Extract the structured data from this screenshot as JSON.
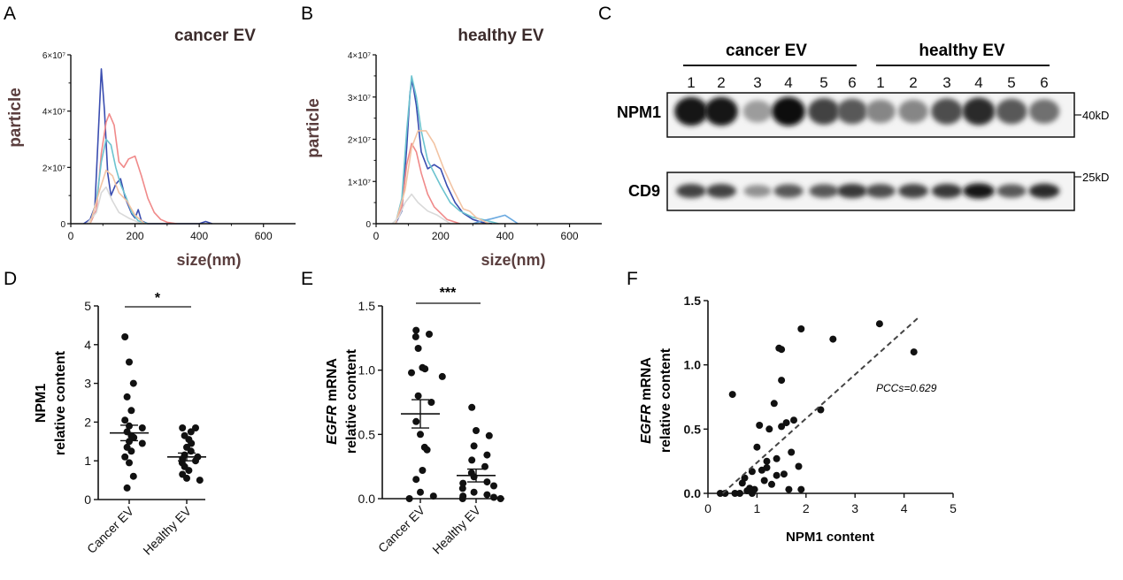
{
  "panel_labels": [
    "A",
    "B",
    "C",
    "D",
    "E",
    "F"
  ],
  "colors": {
    "blue": "#3a4db0",
    "salmon": "#f08a8a",
    "teal": "#6cc3cf",
    "light": "#d9d9d9",
    "peach": "#f2c4a4",
    "sky": "#6aa9e0",
    "axis_label": "#5a3e3e",
    "ink": "#111111"
  },
  "chart_data": [
    {
      "panel": "A",
      "type": "line",
      "title": "cancer EV",
      "xlabel": "size(nm)",
      "ylabel": "particle",
      "xlim": [
        0,
        700
      ],
      "ylim": [
        0,
        60000000
      ],
      "xticks": [
        "0",
        "200",
        "400",
        "600"
      ],
      "yticks": [
        "0",
        "2×10⁷",
        "4×10⁷",
        "6×10⁷"
      ],
      "series": [
        {
          "color": "blue",
          "points": [
            [
              40,
              0
            ],
            [
              60,
              1500000
            ],
            [
              75,
              6000000
            ],
            [
              85,
              30000000
            ],
            [
              95,
              55000000
            ],
            [
              105,
              40000000
            ],
            [
              115,
              18000000
            ],
            [
              125,
              10000000
            ],
            [
              140,
              14000000
            ],
            [
              155,
              16000000
            ],
            [
              170,
              9000000
            ],
            [
              190,
              3500000
            ],
            [
              200,
              2000000
            ],
            [
              210,
              5000000
            ],
            [
              220,
              1000000
            ],
            [
              240,
              0
            ],
            [
              400,
              0
            ],
            [
              420,
              800000
            ],
            [
              440,
              0
            ]
          ]
        },
        {
          "color": "salmon",
          "points": [
            [
              60,
              0
            ],
            [
              80,
              5000000
            ],
            [
              95,
              25000000
            ],
            [
              110,
              36000000
            ],
            [
              120,
              39000000
            ],
            [
              135,
              35000000
            ],
            [
              150,
              22000000
            ],
            [
              165,
              20000000
            ],
            [
              180,
              23000000
            ],
            [
              200,
              24000000
            ],
            [
              220,
              17000000
            ],
            [
              240,
              9000000
            ],
            [
              260,
              4000000
            ],
            [
              280,
              1500000
            ],
            [
              300,
              500000
            ],
            [
              330,
              0
            ]
          ]
        },
        {
          "color": "teal",
          "points": [
            [
              60,
              0
            ],
            [
              80,
              8000000
            ],
            [
              95,
              22000000
            ],
            [
              110,
              30000000
            ],
            [
              125,
              28000000
            ],
            [
              140,
              20000000
            ],
            [
              155,
              14000000
            ],
            [
              170,
              10000000
            ],
            [
              190,
              4000000
            ],
            [
              210,
              1000000
            ],
            [
              240,
              0
            ]
          ]
        },
        {
          "color": "light",
          "points": [
            [
              50,
              0
            ],
            [
              80,
              4000000
            ],
            [
              95,
              11000000
            ],
            [
              110,
              13000000
            ],
            [
              130,
              8000000
            ],
            [
              150,
              4000000
            ],
            [
              180,
              2000000
            ],
            [
              220,
              0
            ]
          ]
        },
        {
          "color": "peach",
          "points": [
            [
              60,
              0
            ],
            [
              90,
              12000000
            ],
            [
              110,
              19000000
            ],
            [
              130,
              17000000
            ],
            [
              150,
              11000000
            ],
            [
              175,
              8000000
            ],
            [
              200,
              3000000
            ],
            [
              230,
              0
            ]
          ]
        }
      ]
    },
    {
      "panel": "B",
      "type": "line",
      "title": "healthy EV",
      "xlabel": "size(nm)",
      "ylabel": "particle",
      "xlim": [
        0,
        700
      ],
      "ylim": [
        0,
        40000000
      ],
      "xticks": [
        "0",
        "200",
        "400",
        "600"
      ],
      "yticks": [
        "0",
        "1×10⁷",
        "2×10⁷",
        "3×10⁷",
        "4×10⁷"
      ],
      "series": [
        {
          "color": "blue",
          "points": [
            [
              60,
              0
            ],
            [
              80,
              3000000
            ],
            [
              95,
              18000000
            ],
            [
              105,
              31000000
            ],
            [
              112,
              34000000
            ],
            [
              125,
              28000000
            ],
            [
              140,
              17000000
            ],
            [
              160,
              13000000
            ],
            [
              180,
              14000000
            ],
            [
              200,
              13000000
            ],
            [
              220,
              9000000
            ],
            [
              245,
              5000000
            ],
            [
              270,
              2500000
            ],
            [
              300,
              1000000
            ],
            [
              330,
              300000
            ],
            [
              360,
              0
            ]
          ]
        },
        {
          "color": "salmon",
          "points": [
            [
              60,
              0
            ],
            [
              80,
              4000000
            ],
            [
              95,
              14000000
            ],
            [
              110,
              19000000
            ],
            [
              125,
              17000000
            ],
            [
              140,
              12000000
            ],
            [
              160,
              7000000
            ],
            [
              180,
              4000000
            ],
            [
              200,
              2500000
            ],
            [
              220,
              1000000
            ],
            [
              260,
              0
            ]
          ]
        },
        {
          "color": "teal",
          "points": [
            [
              60,
              0
            ],
            [
              80,
              6000000
            ],
            [
              95,
              22000000
            ],
            [
              110,
              35000000
            ],
            [
              125,
              30000000
            ],
            [
              140,
              22000000
            ],
            [
              160,
              15000000
            ],
            [
              180,
              12000000
            ],
            [
              200,
              9000000
            ],
            [
              230,
              5000000
            ],
            [
              260,
              3000000
            ],
            [
              300,
              1500000
            ],
            [
              340,
              800000
            ],
            [
              380,
              0
            ]
          ]
        },
        {
          "color": "sky",
          "points": [
            [
              300,
              0
            ],
            [
              330,
              700000
            ],
            [
              360,
              1200000
            ],
            [
              400,
              2000000
            ],
            [
              420,
              1000000
            ],
            [
              440,
              0
            ]
          ]
        },
        {
          "color": "peach",
          "points": [
            [
              60,
              0
            ],
            [
              90,
              8000000
            ],
            [
              110,
              18000000
            ],
            [
              130,
              22000000
            ],
            [
              155,
              22000000
            ],
            [
              180,
              19000000
            ],
            [
              210,
              13000000
            ],
            [
              240,
              8000000
            ],
            [
              270,
              3500000
            ],
            [
              290,
              3000000
            ],
            [
              310,
              1500000
            ],
            [
              350,
              0
            ]
          ]
        },
        {
          "color": "light",
          "points": [
            [
              50,
              0
            ],
            [
              70,
              1500000
            ],
            [
              90,
              5000000
            ],
            [
              110,
              7000000
            ],
            [
              130,
              5000000
            ],
            [
              160,
              3000000
            ],
            [
              190,
              2000000
            ],
            [
              230,
              0
            ]
          ]
        }
      ]
    },
    {
      "panel": "D",
      "type": "scatter",
      "ylabel_line1": "NPM1",
      "ylabel_line2": "relative content",
      "categories": [
        "Cancer EV",
        "Healthy EV"
      ],
      "ylim": [
        0,
        5
      ],
      "yticks": [
        "0",
        "1",
        "2",
        "3",
        "4",
        "5"
      ],
      "significance": "*",
      "series": [
        {
          "name": "Cancer EV",
          "mean": 1.72,
          "sem": 0.2,
          "values": [
            4.2,
            3.55,
            3.0,
            2.65,
            2.3,
            2.05,
            1.9,
            1.85,
            1.75,
            1.65,
            1.6,
            1.5,
            1.45,
            1.35,
            1.25,
            1.1,
            0.95,
            0.6,
            0.3
          ]
        },
        {
          "name": "Healthy EV",
          "mean": 1.1,
          "sem": 0.1,
          "values": [
            1.85,
            1.85,
            1.75,
            1.65,
            1.55,
            1.45,
            1.35,
            1.25,
            1.15,
            1.1,
            1.05,
            1.0,
            0.95,
            0.85,
            0.75,
            0.65,
            0.55,
            0.5
          ]
        }
      ]
    },
    {
      "panel": "E",
      "type": "scatter",
      "ylabel_italic": "EGFR",
      "ylabel_rest": " mRNA",
      "ylabel_line2": "relative content",
      "categories": [
        "Cancer EV",
        "Healthy EV"
      ],
      "ylim": [
        0,
        1.5
      ],
      "yticks": [
        "0.0",
        "0.5",
        "1.0",
        "1.5"
      ],
      "significance": "***",
      "series": [
        {
          "name": "Cancer EV",
          "mean": 0.66,
          "sem": 0.11,
          "values": [
            1.31,
            1.28,
            1.26,
            1.17,
            1.02,
            1.01,
            0.98,
            0.95,
            0.8,
            0.75,
            0.6,
            0.5,
            0.4,
            0.38,
            0.22,
            0.15,
            0.05,
            0.02,
            0.0
          ]
        },
        {
          "name": "Healthy EV",
          "mean": 0.18,
          "sem": 0.05,
          "values": [
            0.71,
            0.53,
            0.49,
            0.41,
            0.34,
            0.3,
            0.25,
            0.2,
            0.17,
            0.13,
            0.12,
            0.1,
            0.08,
            0.05,
            0.03,
            0.02,
            0.01,
            0.0,
            0.0
          ]
        }
      ]
    },
    {
      "panel": "F",
      "type": "scatter",
      "xlabel": "NPM1 content",
      "ylabel_italic": "EGFR",
      "ylabel_rest": " mRNA",
      "ylabel_line2": "relative content",
      "xlim": [
        0,
        5
      ],
      "ylim": [
        0,
        1.5
      ],
      "xticks": [
        "0",
        "1",
        "2",
        "3",
        "4",
        "5"
      ],
      "yticks": [
        "0.0",
        "0.5",
        "1.0",
        "1.5"
      ],
      "annotation": "PCCs=0.629",
      "fit": [
        [
          0.3,
          0.0
        ],
        [
          4.3,
          1.37
        ]
      ],
      "points": [
        [
          0.25,
          0.0
        ],
        [
          0.35,
          0.0
        ],
        [
          0.55,
          0.0
        ],
        [
          0.65,
          0.0
        ],
        [
          0.8,
          0.02
        ],
        [
          0.9,
          0.0
        ],
        [
          0.95,
          0.03
        ],
        [
          0.5,
          0.77
        ],
        [
          0.7,
          0.08
        ],
        [
          0.75,
          0.12
        ],
        [
          0.85,
          0.04
        ],
        [
          0.9,
          0.17
        ],
        [
          1.0,
          0.36
        ],
        [
          1.05,
          0.53
        ],
        [
          1.1,
          0.18
        ],
        [
          1.15,
          0.1
        ],
        [
          1.2,
          0.25
        ],
        [
          1.2,
          0.2
        ],
        [
          1.25,
          0.5
        ],
        [
          1.3,
          0.07
        ],
        [
          1.35,
          0.7
        ],
        [
          1.4,
          0.14
        ],
        [
          1.4,
          0.27
        ],
        [
          1.45,
          1.13
        ],
        [
          1.5,
          1.12
        ],
        [
          1.5,
          0.88
        ],
        [
          1.5,
          0.52
        ],
        [
          1.55,
          0.15
        ],
        [
          1.6,
          0.55
        ],
        [
          1.65,
          0.03
        ],
        [
          1.7,
          0.32
        ],
        [
          1.75,
          0.57
        ],
        [
          1.85,
          0.21
        ],
        [
          1.9,
          0.03
        ],
        [
          1.9,
          1.28
        ],
        [
          2.3,
          0.65
        ],
        [
          2.55,
          1.2
        ],
        [
          3.5,
          1.32
        ],
        [
          4.2,
          1.1
        ]
      ]
    }
  ],
  "blot": {
    "group_labels": [
      "cancer EV",
      "healthy EV"
    ],
    "lane_numbers": [
      "1",
      "2",
      "3",
      "4",
      "5",
      "6",
      "1",
      "2",
      "3",
      "4",
      "5",
      "6"
    ],
    "bands": [
      {
        "name": "NPM1",
        "marker": "40kD",
        "intensity": [
          0.95,
          0.95,
          0.35,
          0.97,
          0.75,
          0.65,
          0.45,
          0.45,
          0.7,
          0.85,
          0.65,
          0.55
        ]
      },
      {
        "name": "CD9",
        "marker": "25kD",
        "intensity": [
          0.75,
          0.75,
          0.4,
          0.65,
          0.65,
          0.8,
          0.7,
          0.75,
          0.8,
          0.95,
          0.65,
          0.85
        ]
      }
    ]
  }
}
